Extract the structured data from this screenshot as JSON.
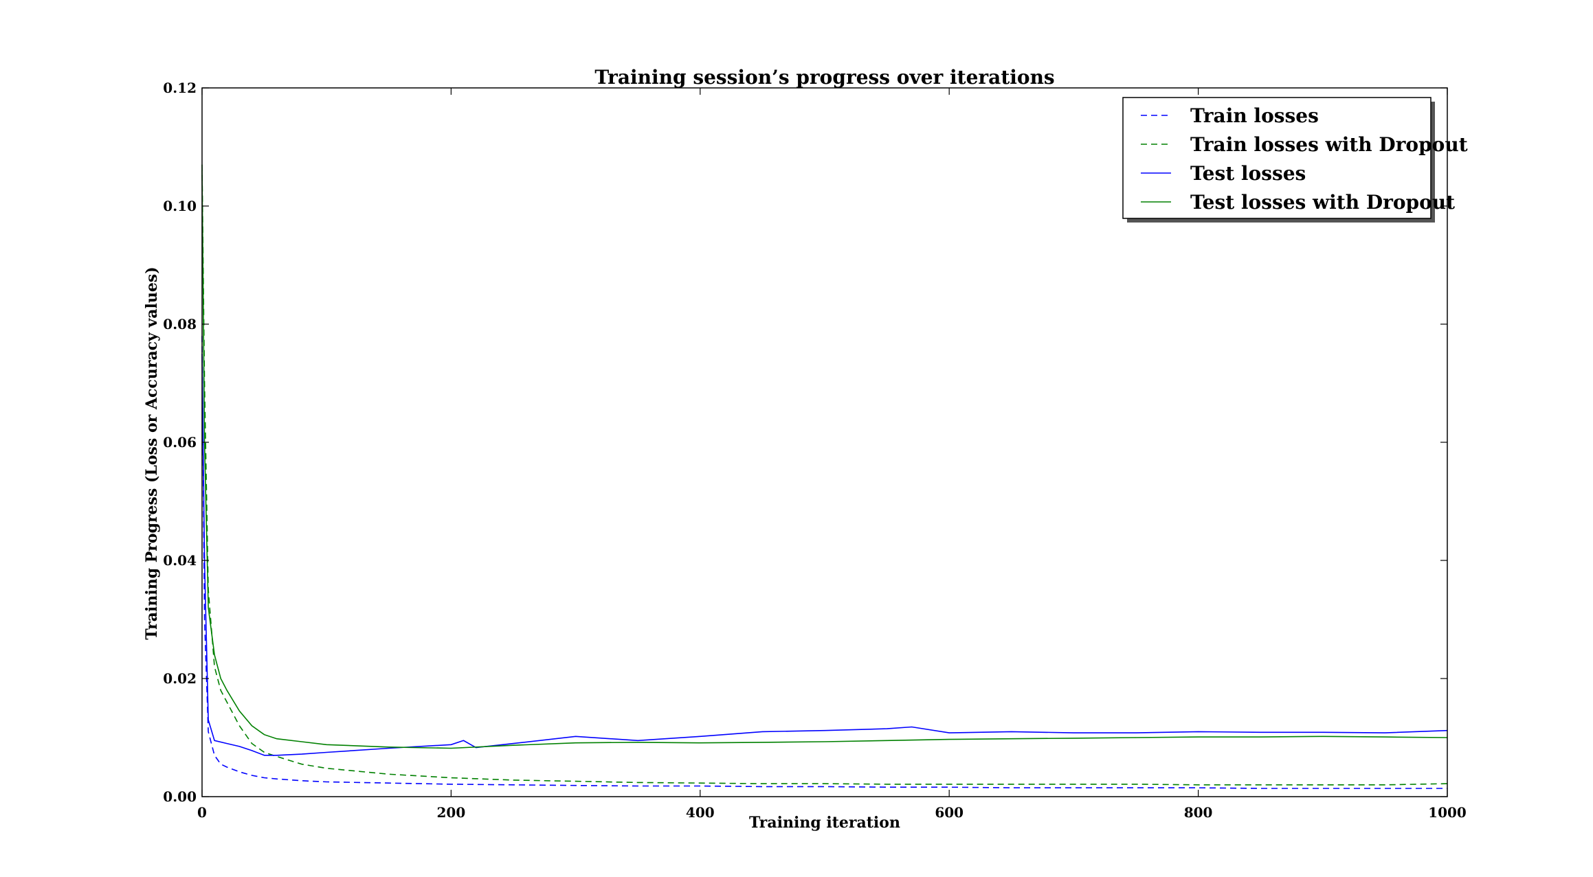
{
  "chart_data": {
    "type": "line",
    "title": "Training session’s progress over iterations",
    "xlabel": "Training iteration",
    "ylabel": "Training Progress (Loss or Accuracy values)",
    "xlim": [
      0,
      1000
    ],
    "ylim": [
      0,
      0.12
    ],
    "x_ticks": [
      "0",
      "200",
      "400",
      "600",
      "800",
      "1000"
    ],
    "y_ticks": [
      "0.00",
      "0.02",
      "0.04",
      "0.06",
      "0.08",
      "0.10",
      "0.12"
    ],
    "grid": false,
    "legend_position": "top-right",
    "series": [
      {
        "name": "Train losses",
        "color": "#0000ff",
        "dash": "dashed",
        "x": [
          0,
          2,
          5,
          10,
          15,
          20,
          30,
          40,
          50,
          60,
          80,
          100,
          150,
          200,
          250,
          300,
          350,
          400,
          450,
          500,
          550,
          600,
          650,
          700,
          750,
          800,
          850,
          900,
          950,
          1000
        ],
        "y": [
          0.078,
          0.03,
          0.011,
          0.007,
          0.0055,
          0.005,
          0.0042,
          0.0036,
          0.0032,
          0.003,
          0.0027,
          0.0025,
          0.0023,
          0.0021,
          0.002,
          0.0019,
          0.0018,
          0.0018,
          0.0017,
          0.0017,
          0.0016,
          0.0016,
          0.0015,
          0.0015,
          0.0015,
          0.0015,
          0.0014,
          0.0014,
          0.0014,
          0.0014
        ]
      },
      {
        "name": "Train losses with Dropout",
        "color": "#008000",
        "dash": "dashed",
        "x": [
          0,
          2,
          5,
          10,
          15,
          20,
          30,
          40,
          50,
          60,
          80,
          100,
          150,
          200,
          250,
          300,
          350,
          400,
          450,
          500,
          550,
          600,
          650,
          700,
          750,
          800,
          850,
          900,
          950,
          1000
        ],
        "y": [
          0.107,
          0.07,
          0.035,
          0.022,
          0.018,
          0.016,
          0.012,
          0.009,
          0.0075,
          0.0068,
          0.0055,
          0.0048,
          0.0038,
          0.0032,
          0.0028,
          0.0026,
          0.0024,
          0.0023,
          0.0022,
          0.0022,
          0.0021,
          0.0021,
          0.0021,
          0.0021,
          0.0021,
          0.002,
          0.002,
          0.002,
          0.002,
          0.0022
        ]
      },
      {
        "name": "Test losses",
        "color": "#0000ff",
        "dash": "solid",
        "x": [
          0,
          2,
          5,
          10,
          20,
          30,
          40,
          50,
          60,
          80,
          100,
          150,
          200,
          210,
          220,
          250,
          300,
          350,
          400,
          450,
          500,
          550,
          570,
          600,
          650,
          700,
          750,
          800,
          850,
          900,
          950,
          1000
        ],
        "y": [
          0.075,
          0.04,
          0.013,
          0.0095,
          0.009,
          0.0085,
          0.0078,
          0.007,
          0.007,
          0.0072,
          0.0075,
          0.0082,
          0.0088,
          0.0095,
          0.0083,
          0.009,
          0.0102,
          0.0095,
          0.0102,
          0.011,
          0.0112,
          0.0115,
          0.0118,
          0.0108,
          0.011,
          0.0108,
          0.0108,
          0.011,
          0.0109,
          0.0109,
          0.0108,
          0.0112
        ]
      },
      {
        "name": "Test losses with Dropout",
        "color": "#008000",
        "dash": "solid",
        "x": [
          0,
          2,
          5,
          10,
          15,
          20,
          30,
          40,
          50,
          60,
          80,
          100,
          150,
          200,
          250,
          300,
          350,
          400,
          450,
          500,
          550,
          600,
          650,
          700,
          750,
          800,
          850,
          900,
          950,
          1000
        ],
        "y": [
          0.106,
          0.06,
          0.032,
          0.024,
          0.02,
          0.018,
          0.0145,
          0.012,
          0.0105,
          0.0098,
          0.0093,
          0.0088,
          0.0084,
          0.0082,
          0.0087,
          0.0091,
          0.0092,
          0.0091,
          0.0092,
          0.0093,
          0.0095,
          0.0097,
          0.0098,
          0.0099,
          0.01,
          0.0101,
          0.0101,
          0.0102,
          0.0101,
          0.01
        ]
      }
    ]
  }
}
